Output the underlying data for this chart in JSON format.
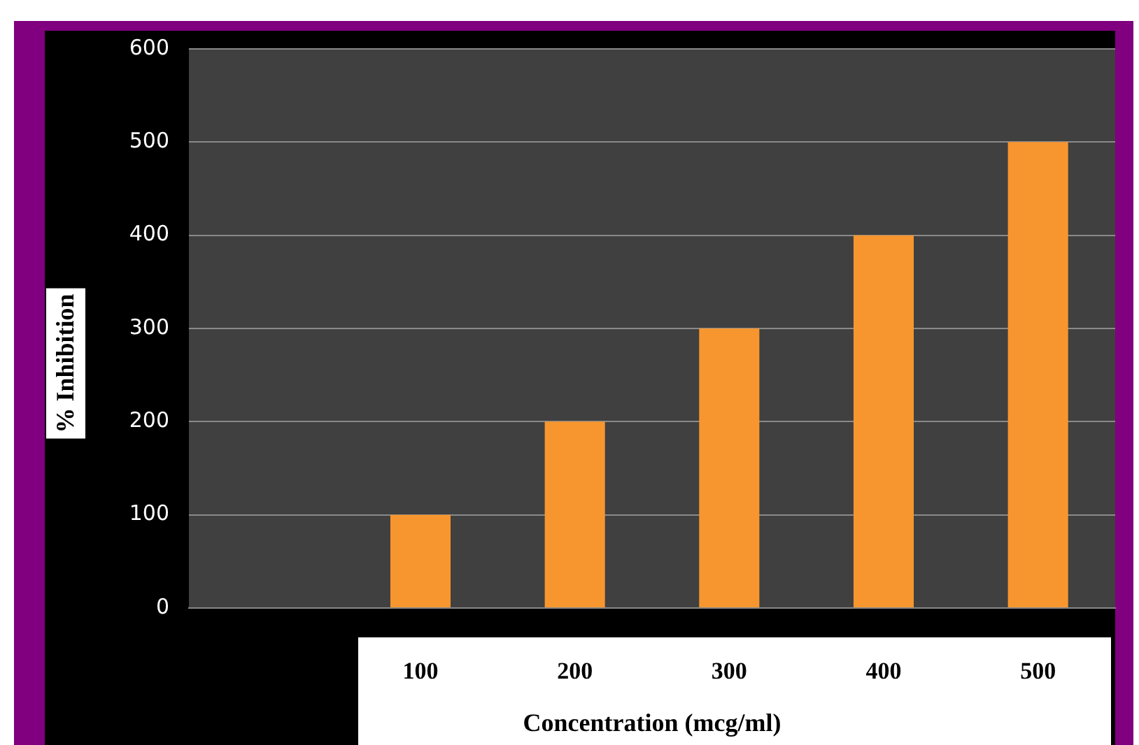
{
  "chart_data": {
    "type": "bar",
    "xlabel": "Concentration (mcg/ml)",
    "ylabel": "% Inhibition",
    "categories": [
      null,
      "100",
      "200",
      "300",
      "400",
      "500"
    ],
    "values": [
      null,
      100,
      200,
      300,
      400,
      500
    ],
    "color": "#f7962e",
    "ylim": [
      0,
      600
    ],
    "yticks": [
      0,
      100,
      200,
      300,
      400,
      500,
      600
    ],
    "grid": "y",
    "legend": false
  }
}
